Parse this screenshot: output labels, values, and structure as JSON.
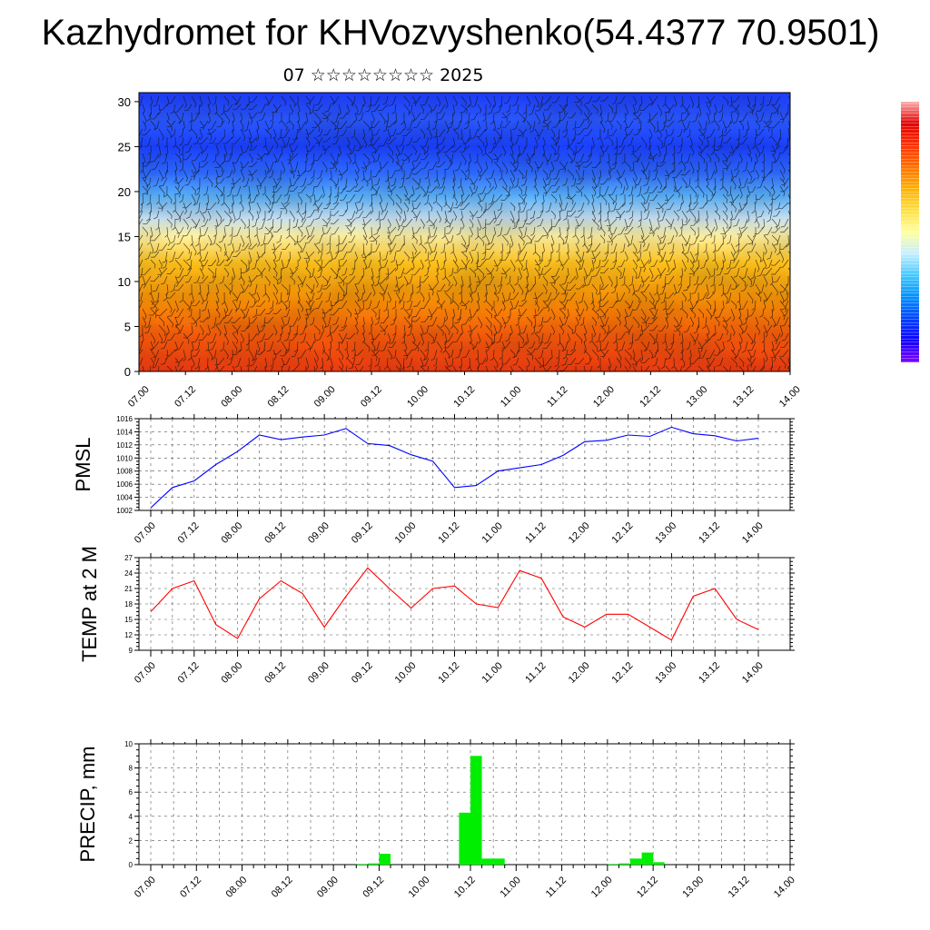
{
  "title": "Kazhydromet for KHVozvyshenko(54.4377 70.9501)",
  "subtitle": "07 ☆☆☆☆☆☆☆☆ 2025",
  "time_labels": [
    "07.00",
    "07.12",
    "08.00",
    "08.12",
    "09.00",
    "09.12",
    "10.00",
    "10.12",
    "11.00",
    "11.12",
    "12.00",
    "12.12",
    "13.00",
    "13.12",
    "14.00"
  ],
  "colors": {
    "pmsl": "#0000ff",
    "temp": "#ff0000",
    "precip": "#00ee00"
  },
  "chart_data": [
    {
      "type": "heatmap",
      "description_key": "vertical-profile",
      "ylim": [
        0,
        31
      ],
      "yticks": [
        0,
        5,
        10,
        15,
        20,
        25,
        30
      ],
      "x_range_hours": [
        0,
        168
      ],
      "overlay": "wind-barbs",
      "colormap": [
        "#8000ff",
        "#1000ff",
        "#0040ff",
        "#0090ff",
        "#40c8ff",
        "#c8eeff",
        "#ffffa0",
        "#ffe040",
        "#ffb000",
        "#ff7000",
        "#ff3000",
        "#e00000",
        "#ffaaaa"
      ],
      "bands": [
        {
          "level": 0,
          "color": "#f03a10"
        },
        {
          "level": 4,
          "color": "#f55a0a"
        },
        {
          "level": 8,
          "color": "#fa9205"
        },
        {
          "level": 12,
          "color": "#fcc01a"
        },
        {
          "level": 15,
          "color": "#fff2a0"
        },
        {
          "level": 17,
          "color": "#c8e0f0"
        },
        {
          "level": 19.5,
          "color": "#5ab4ff"
        },
        {
          "level": 22,
          "color": "#2e6aff"
        },
        {
          "level": 25,
          "color": "#1a40ff"
        },
        {
          "level": 28,
          "color": "#2a58ff"
        },
        {
          "level": 31,
          "color": "#1c3cff"
        }
      ]
    },
    {
      "type": "line",
      "ylabel": "PMSL",
      "ylim": [
        1002,
        1016
      ],
      "yticks": [
        1002,
        1004,
        1006,
        1008,
        1010,
        1012,
        1014,
        1016
      ],
      "x_hours": [
        0,
        6,
        12,
        18,
        24,
        30,
        36,
        42,
        48,
        54,
        60,
        66,
        72,
        78,
        84,
        90,
        96,
        102,
        108,
        114,
        120,
        126,
        132,
        138,
        144,
        150,
        156,
        162,
        168
      ],
      "series": [
        {
          "values": [
            1002.4,
            1005.5,
            1006.5,
            1009.0,
            1011.0,
            1013.5,
            1012.8,
            1013.2,
            1013.5,
            1014.5,
            1012.2,
            1011.9,
            1010.5,
            1009.5,
            1005.5,
            1005.8,
            1008.0,
            1008.5,
            1009.0,
            1010.4,
            1012.5,
            1012.7,
            1013.5,
            1013.3,
            1014.7,
            1013.7,
            1013.4,
            1012.6,
            1013.0
          ]
        }
      ]
    },
    {
      "type": "line",
      "ylabel": "TEMP at 2 M",
      "ylim": [
        9,
        27
      ],
      "yticks": [
        9,
        12,
        15,
        18,
        21,
        24,
        27
      ],
      "x_hours": [
        0,
        6,
        12,
        18,
        24,
        30,
        36,
        42,
        48,
        54,
        60,
        66,
        72,
        78,
        84,
        90,
        96,
        102,
        108,
        114,
        120,
        126,
        132,
        138,
        144,
        150,
        156,
        162,
        168
      ],
      "series": [
        {
          "values": [
            16.5,
            21.0,
            22.5,
            14.0,
            11.3,
            19.0,
            22.5,
            20.0,
            13.5,
            19.5,
            25.0,
            21.0,
            17.2,
            21.0,
            21.5,
            18.0,
            17.3,
            24.5,
            23.0,
            15.5,
            13.5,
            16.0,
            16.0,
            13.5,
            11.0,
            19.5,
            21.0,
            15.0,
            13.0
          ]
        }
      ]
    },
    {
      "type": "bar",
      "ylabel": "PRECIP, mm",
      "ylim": [
        0,
        10
      ],
      "yticks": [
        0,
        2,
        4,
        6,
        8,
        10
      ],
      "bins_hours": [
        [
          54,
          57,
          0.05
        ],
        [
          57,
          60,
          0.1
        ],
        [
          60,
          63,
          0.9
        ],
        [
          81,
          84,
          4.3
        ],
        [
          84,
          87,
          9.0
        ],
        [
          87,
          90,
          0.5
        ],
        [
          90,
          93,
          0.5
        ],
        [
          120,
          123,
          0.05
        ],
        [
          123,
          126,
          0.1
        ],
        [
          126,
          129,
          0.5
        ],
        [
          129,
          132,
          1.0
        ],
        [
          132,
          135,
          0.2
        ]
      ]
    }
  ]
}
